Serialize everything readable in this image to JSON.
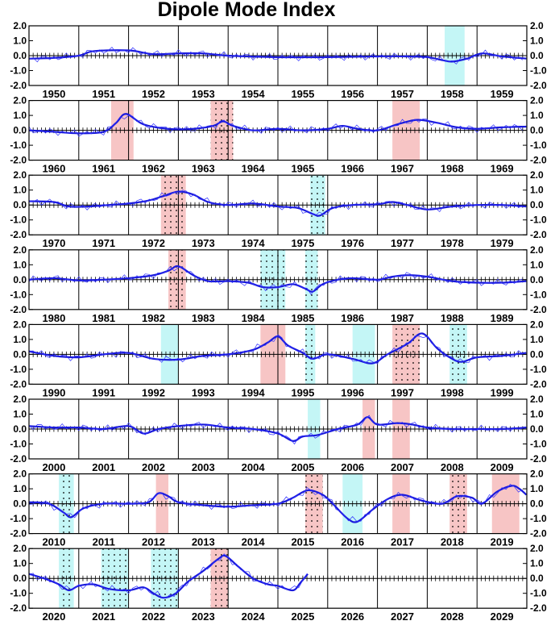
{
  "chart_data": {
    "type": "line",
    "title": "Dipole Mode Index",
    "xlabel": "",
    "ylabel": "",
    "ylim": [
      -2.0,
      2.0
    ],
    "yticks": [
      "2.0",
      "1.0",
      "0.0",
      "-1.0",
      "-2.0"
    ],
    "decades": [
      {
        "years": [
          "1950",
          "1951",
          "1952",
          "1953",
          "1954",
          "1955",
          "1956",
          "1957",
          "1958",
          "1959"
        ],
        "highlights": [
          {
            "from": 8.35,
            "to": 8.75,
            "kind": "negative",
            "dotted": false
          }
        ],
        "smooth": [
          [
            0,
            -0.2
          ],
          [
            0.5,
            -0.15
          ],
          [
            1.0,
            0.0
          ],
          [
            1.3,
            0.3
          ],
          [
            2.0,
            0.35
          ],
          [
            2.5,
            0.1
          ],
          [
            3.0,
            0.15
          ],
          [
            3.5,
            0.15
          ],
          [
            4.0,
            0.0
          ],
          [
            5.0,
            -0.1
          ],
          [
            6.0,
            -0.1
          ],
          [
            7.0,
            -0.05
          ],
          [
            7.5,
            -0.05
          ],
          [
            8.0,
            -0.1
          ],
          [
            8.3,
            -0.3
          ],
          [
            8.5,
            -0.4
          ],
          [
            8.8,
            -0.2
          ],
          [
            9.1,
            0.15
          ],
          [
            9.5,
            -0.05
          ],
          [
            9.99,
            -0.2
          ]
        ]
      },
      {
        "years": [
          "1960",
          "1961",
          "1962",
          "1963",
          "1964",
          "1965",
          "1966",
          "1967",
          "1968",
          "1969"
        ],
        "highlights": [
          {
            "from": 1.65,
            "to": 2.1,
            "kind": "positive",
            "dotted": false
          },
          {
            "from": 3.65,
            "to": 4.1,
            "kind": "positive",
            "dotted": true
          },
          {
            "from": 7.3,
            "to": 7.85,
            "kind": "positive",
            "dotted": false
          }
        ],
        "smooth": [
          [
            0,
            0.0
          ],
          [
            0.5,
            -0.1
          ],
          [
            1.0,
            -0.2
          ],
          [
            1.5,
            -0.1
          ],
          [
            1.75,
            0.5
          ],
          [
            1.95,
            1.1
          ],
          [
            2.3,
            0.4
          ],
          [
            2.8,
            0.1
          ],
          [
            3.3,
            0.1
          ],
          [
            3.7,
            0.3
          ],
          [
            3.9,
            0.6
          ],
          [
            4.1,
            0.3
          ],
          [
            4.5,
            0.0
          ],
          [
            5.0,
            0.1
          ],
          [
            5.5,
            0.0
          ],
          [
            6.0,
            0.1
          ],
          [
            6.3,
            0.3
          ],
          [
            6.6,
            0.1
          ],
          [
            7.0,
            0.0
          ],
          [
            7.4,
            0.4
          ],
          [
            7.8,
            0.7
          ],
          [
            8.2,
            0.5
          ],
          [
            8.6,
            0.2
          ],
          [
            9.0,
            0.1
          ],
          [
            9.5,
            0.2
          ],
          [
            9.99,
            0.25
          ]
        ]
      },
      {
        "years": [
          "1970",
          "1971",
          "1972",
          "1973",
          "1974",
          "1975",
          "1976",
          "1977",
          "1978",
          "1979"
        ],
        "highlights": [
          {
            "from": 2.65,
            "to": 3.15,
            "kind": "positive",
            "dotted": true
          },
          {
            "from": 5.65,
            "to": 5.95,
            "kind": "negative",
            "dotted": true
          }
        ],
        "smooth": [
          [
            0,
            0.25
          ],
          [
            0.5,
            0.2
          ],
          [
            0.8,
            -0.1
          ],
          [
            1.2,
            -0.1
          ],
          [
            1.6,
            0.0
          ],
          [
            2.0,
            0.1
          ],
          [
            2.4,
            0.3
          ],
          [
            2.7,
            0.6
          ],
          [
            3.0,
            0.9
          ],
          [
            3.3,
            0.7
          ],
          [
            3.6,
            0.2
          ],
          [
            4.0,
            0.0
          ],
          [
            4.5,
            0.1
          ],
          [
            5.0,
            -0.1
          ],
          [
            5.4,
            -0.2
          ],
          [
            5.7,
            -0.6
          ],
          [
            5.85,
            -0.7
          ],
          [
            6.1,
            -0.2
          ],
          [
            6.5,
            0.0
          ],
          [
            7.0,
            0.05
          ],
          [
            7.3,
            0.2
          ],
          [
            7.6,
            0.0
          ],
          [
            8.0,
            -0.3
          ],
          [
            8.5,
            -0.1
          ],
          [
            9.0,
            0.0
          ],
          [
            9.5,
            0.0
          ],
          [
            9.99,
            -0.1
          ]
        ]
      },
      {
        "years": [
          "1980",
          "1981",
          "1982",
          "1983",
          "1984",
          "1985",
          "1986",
          "1987",
          "1988",
          "1989"
        ],
        "highlights": [
          {
            "from": 2.8,
            "to": 3.15,
            "kind": "positive",
            "dotted": true
          },
          {
            "from": 4.65,
            "to": 5.15,
            "kind": "negative",
            "dotted": true
          },
          {
            "from": 5.55,
            "to": 5.8,
            "kind": "negative",
            "dotted": true
          }
        ],
        "smooth": [
          [
            0,
            0.0
          ],
          [
            0.5,
            0.1
          ],
          [
            1.0,
            -0.05
          ],
          [
            1.5,
            0.0
          ],
          [
            2.0,
            0.1
          ],
          [
            2.5,
            0.3
          ],
          [
            2.8,
            0.6
          ],
          [
            3.0,
            0.9
          ],
          [
            3.3,
            0.3
          ],
          [
            3.6,
            -0.1
          ],
          [
            4.0,
            -0.1
          ],
          [
            4.4,
            -0.2
          ],
          [
            4.7,
            -0.5
          ],
          [
            5.0,
            -0.5
          ],
          [
            5.3,
            -0.3
          ],
          [
            5.55,
            -0.6
          ],
          [
            5.7,
            -0.8
          ],
          [
            5.9,
            -0.3
          ],
          [
            6.2,
            0.0
          ],
          [
            6.5,
            0.1
          ],
          [
            7.0,
            0.0
          ],
          [
            7.3,
            0.2
          ],
          [
            7.6,
            0.3
          ],
          [
            8.0,
            0.2
          ],
          [
            8.5,
            -0.1
          ],
          [
            9.0,
            -0.2
          ],
          [
            9.5,
            -0.2
          ],
          [
            9.99,
            -0.1
          ]
        ]
      },
      {
        "years": [
          "1990",
          "1991",
          "1992",
          "1993",
          "1994",
          "1995",
          "1996",
          "1997",
          "1998",
          "1999"
        ],
        "highlights": [
          {
            "from": 2.65,
            "to": 3.0,
            "kind": "negative",
            "dotted": false
          },
          {
            "from": 4.65,
            "to": 5.15,
            "kind": "positive",
            "dotted": false
          },
          {
            "from": 5.55,
            "to": 5.75,
            "kind": "negative",
            "dotted": true
          },
          {
            "from": 6.5,
            "to": 6.95,
            "kind": "negative",
            "dotted": false
          },
          {
            "from": 7.3,
            "to": 7.85,
            "kind": "positive",
            "dotted": true
          },
          {
            "from": 8.45,
            "to": 8.8,
            "kind": "negative",
            "dotted": true
          }
        ],
        "smooth": [
          [
            0,
            0.2
          ],
          [
            0.5,
            -0.1
          ],
          [
            1.0,
            -0.2
          ],
          [
            1.5,
            0.0
          ],
          [
            2.0,
            0.1
          ],
          [
            2.5,
            -0.3
          ],
          [
            3.0,
            -0.35
          ],
          [
            3.5,
            -0.1
          ],
          [
            4.0,
            0.0
          ],
          [
            4.5,
            0.3
          ],
          [
            4.8,
            0.8
          ],
          [
            5.0,
            1.2
          ],
          [
            5.2,
            0.6
          ],
          [
            5.5,
            0.1
          ],
          [
            5.7,
            -0.3
          ],
          [
            6.0,
            0.0
          ],
          [
            6.5,
            -0.3
          ],
          [
            6.9,
            -0.6
          ],
          [
            7.2,
            0.0
          ],
          [
            7.6,
            0.7
          ],
          [
            7.9,
            1.4
          ],
          [
            8.2,
            0.4
          ],
          [
            8.5,
            -0.3
          ],
          [
            8.7,
            -0.5
          ],
          [
            9.0,
            -0.2
          ],
          [
            9.5,
            -0.1
          ],
          [
            9.99,
            0.1
          ]
        ]
      },
      {
        "years": [
          "2000",
          "2001",
          "2002",
          "2003",
          "2004",
          "2005",
          "2006",
          "2007",
          "2008",
          "2009"
        ],
        "highlights": [
          {
            "from": 5.6,
            "to": 5.85,
            "kind": "negative",
            "dotted": false
          },
          {
            "from": 6.7,
            "to": 6.95,
            "kind": "positive",
            "dotted": false
          },
          {
            "from": 7.3,
            "to": 7.65,
            "kind": "positive",
            "dotted": false
          }
        ],
        "smooth": [
          [
            0,
            0.2
          ],
          [
            0.5,
            0.1
          ],
          [
            1.0,
            0.1
          ],
          [
            1.5,
            0.0
          ],
          [
            2.0,
            0.2
          ],
          [
            2.3,
            -0.3
          ],
          [
            2.6,
            0.0
          ],
          [
            3.0,
            0.2
          ],
          [
            3.5,
            0.3
          ],
          [
            4.0,
            0.1
          ],
          [
            4.5,
            0.0
          ],
          [
            5.0,
            -0.3
          ],
          [
            5.3,
            -0.8
          ],
          [
            5.5,
            -0.5
          ],
          [
            5.8,
            -0.4
          ],
          [
            6.2,
            0.0
          ],
          [
            6.6,
            0.3
          ],
          [
            6.8,
            0.8
          ],
          [
            7.0,
            0.3
          ],
          [
            7.4,
            0.4
          ],
          [
            7.7,
            0.3
          ],
          [
            8.0,
            0.1
          ],
          [
            8.5,
            0.0
          ],
          [
            9.0,
            0.0
          ],
          [
            9.5,
            0.0
          ],
          [
            9.99,
            0.1
          ]
        ]
      },
      {
        "years": [
          "2010",
          "2011",
          "2012",
          "2013",
          "2014",
          "2015",
          "2016",
          "2017",
          "2018",
          "2019"
        ],
        "highlights": [
          {
            "from": 0.6,
            "to": 0.9,
            "kind": "negative",
            "dotted": true
          },
          {
            "from": 2.55,
            "to": 2.8,
            "kind": "positive",
            "dotted": false
          },
          {
            "from": 5.55,
            "to": 5.9,
            "kind": "positive",
            "dotted": true
          },
          {
            "from": 6.3,
            "to": 6.7,
            "kind": "negative",
            "dotted": false
          },
          {
            "from": 7.3,
            "to": 7.65,
            "kind": "positive",
            "dotted": false
          },
          {
            "from": 8.45,
            "to": 8.8,
            "kind": "positive",
            "dotted": true
          },
          {
            "from": 9.3,
            "to": 9.85,
            "kind": "positive",
            "dotted": false
          }
        ],
        "smooth": [
          [
            0,
            0.1
          ],
          [
            0.4,
            0.0
          ],
          [
            0.7,
            -0.6
          ],
          [
            0.85,
            -0.9
          ],
          [
            1.1,
            -0.3
          ],
          [
            1.5,
            0.0
          ],
          [
            2.0,
            0.0
          ],
          [
            2.4,
            0.1
          ],
          [
            2.6,
            0.7
          ],
          [
            2.8,
            0.5
          ],
          [
            3.0,
            0.1
          ],
          [
            3.5,
            -0.1
          ],
          [
            4.0,
            -0.2
          ],
          [
            4.5,
            -0.1
          ],
          [
            5.0,
            0.0
          ],
          [
            5.3,
            0.4
          ],
          [
            5.6,
            0.9
          ],
          [
            5.9,
            0.6
          ],
          [
            6.1,
            0.0
          ],
          [
            6.4,
            -1.0
          ],
          [
            6.6,
            -1.2
          ],
          [
            6.9,
            -0.4
          ],
          [
            7.2,
            0.3
          ],
          [
            7.5,
            0.6
          ],
          [
            7.9,
            0.2
          ],
          [
            8.3,
            0.0
          ],
          [
            8.6,
            0.5
          ],
          [
            8.9,
            0.4
          ],
          [
            9.1,
            0.0
          ],
          [
            9.4,
            0.8
          ],
          [
            9.7,
            1.2
          ],
          [
            9.85,
            1.0
          ],
          [
            9.99,
            0.6
          ]
        ]
      },
      {
        "years": [
          "2020",
          "2021",
          "2022",
          "2023",
          "2024",
          "2025",
          "2026",
          "2027",
          "2028",
          "2029"
        ],
        "highlights": [
          {
            "from": 0.6,
            "to": 0.9,
            "kind": "negative",
            "dotted": true
          },
          {
            "from": 1.45,
            "to": 2.0,
            "kind": "negative",
            "dotted": true
          },
          {
            "from": 2.45,
            "to": 3.0,
            "kind": "negative",
            "dotted": true
          },
          {
            "from": 3.65,
            "to": 4.0,
            "kind": "positive",
            "dotted": true
          }
        ],
        "smooth": [
          [
            0,
            0.3
          ],
          [
            0.3,
            0.0
          ],
          [
            0.6,
            -0.4
          ],
          [
            0.8,
            -0.8
          ],
          [
            1.0,
            -0.5
          ],
          [
            1.3,
            -0.4
          ],
          [
            1.6,
            -0.7
          ],
          [
            2.0,
            -0.8
          ],
          [
            2.3,
            -0.6
          ],
          [
            2.5,
            -1.0
          ],
          [
            2.7,
            -1.3
          ],
          [
            2.95,
            -1.0
          ],
          [
            3.2,
            -0.2
          ],
          [
            3.5,
            0.5
          ],
          [
            3.8,
            1.3
          ],
          [
            3.95,
            1.5
          ],
          [
            4.2,
            0.8
          ],
          [
            4.5,
            0.0
          ],
          [
            4.8,
            -0.4
          ],
          [
            5.0,
            -0.5
          ],
          [
            5.3,
            -0.8
          ],
          [
            5.45,
            -0.3
          ],
          [
            5.6,
            0.3
          ]
        ]
      }
    ]
  }
}
